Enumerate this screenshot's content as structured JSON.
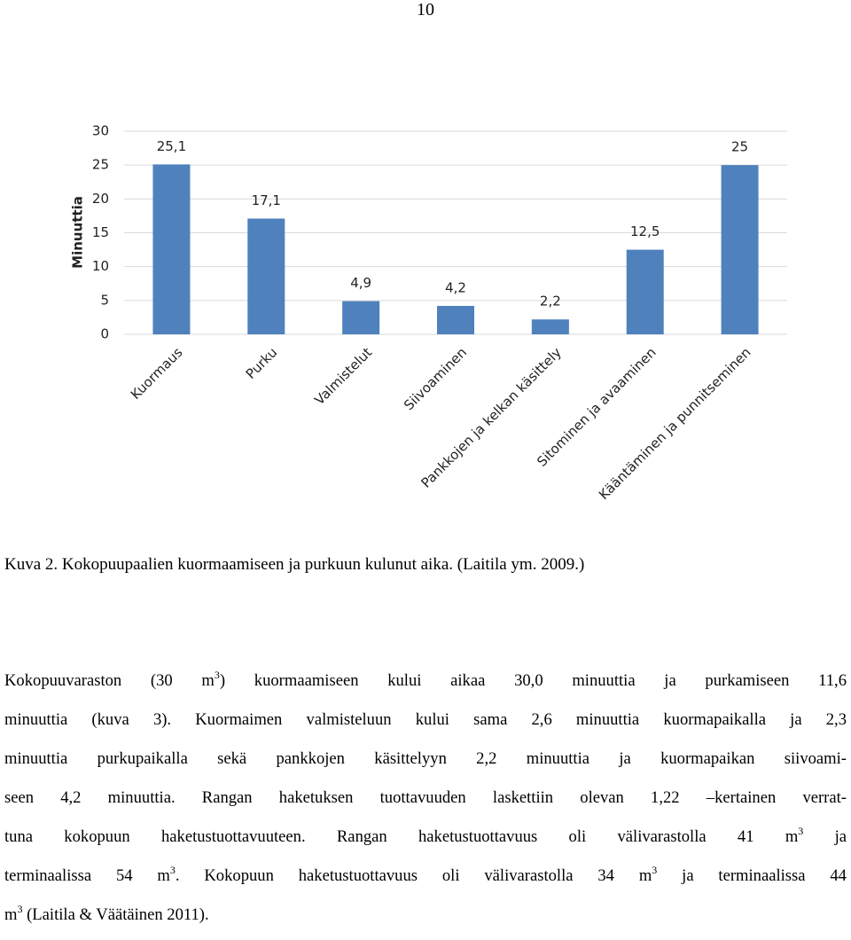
{
  "page_number": "10",
  "chart_data": {
    "type": "bar",
    "y_label": "Minuuttia",
    "categories": [
      "Kuormaus",
      "Purku",
      "Valmistelut",
      "Siivoaminen",
      "Pankkojen ja kelkan käsittely",
      "Sitominen ja avaaminen",
      "Kääntäminen ja punnitseminen"
    ],
    "values": [
      25.1,
      17.1,
      4.9,
      4.2,
      2.2,
      12.5,
      25
    ],
    "value_labels": [
      "25,1",
      "17,1",
      "4,9",
      "4,2",
      "2,2",
      "12,5",
      "25"
    ],
    "color": "#4f81bd",
    "ylim": [
      0,
      30
    ],
    "yticks": [
      0,
      5,
      10,
      15,
      20,
      25,
      30
    ],
    "grid": true
  },
  "caption": "Kuva 2. Kokopuupaalien kuormaamiseen ja purkuun kulunut aika. (Laitila ym. 2009.)",
  "body_lines": [
    [
      "Kokopuuvaraston (30 m",
      "3",
      ") kuormaamiseen kului aikaa 30,0 minuuttia ja purkamiseen 11,6"
    ],
    [
      "minuuttia (kuva 3). Kuormaimen valmisteluun kului sama 2,6 minuuttia kuormapaikalla ja 2,3"
    ],
    [
      "minuuttia purkupaikalla sekä pankkojen käsittelyyn 2,2 minuuttia ja kuormapaikan siivoami-"
    ],
    [
      "seen 4,2 minuuttia. Rangan haketuksen tuottavuuden laskettiin olevan 1,22 –kertainen verrat-"
    ],
    [
      "tuna kokopuun haketustuottavuuteen. Rangan haketustuottavuus oli välivarastolla 41 m",
      "3",
      " ja"
    ],
    [
      "terminaalissa 54 m",
      "3",
      ". Kokopuun haketustuottavuus oli välivarastolla 34 m",
      "3",
      " ja terminaalissa 44"
    ],
    [
      "m",
      "3",
      " (Laitila & Väätäinen 2011)."
    ]
  ]
}
